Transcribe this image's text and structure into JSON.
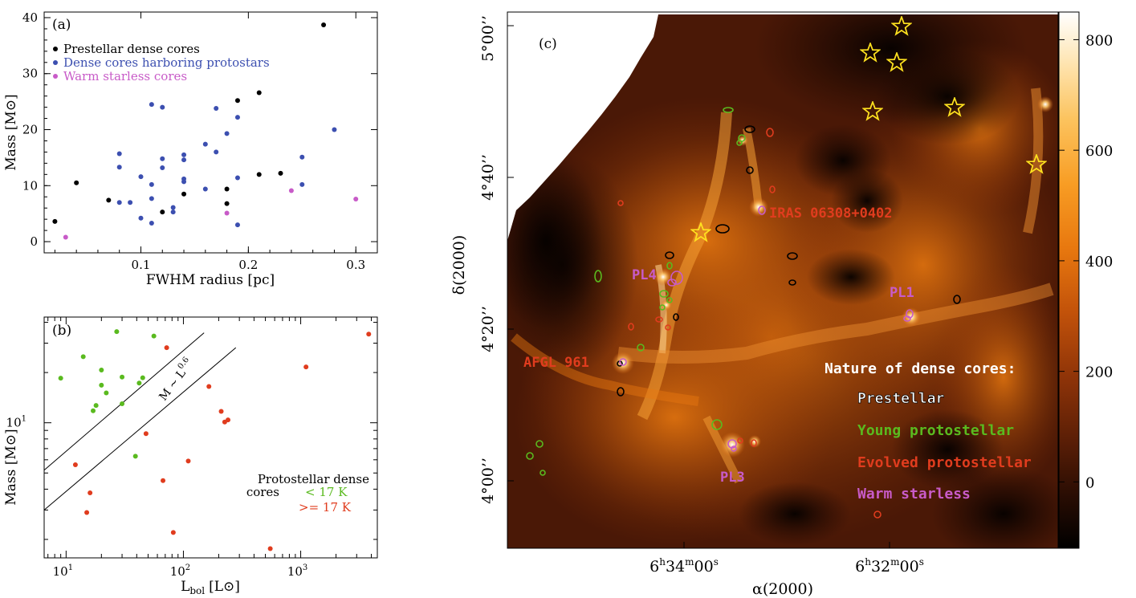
{
  "chart_data": [
    {
      "panel": "(a)",
      "type": "scatter",
      "xlabel": "FWHM radius [pc]",
      "ylabel": "Mass [M⊙]",
      "xlim": [
        0.01,
        0.32
      ],
      "ylim": [
        -2,
        41
      ],
      "xticks": [
        0.1,
        0.2,
        0.3
      ],
      "xtick_labels": [
        "0.1",
        "0.2",
        "0.3"
      ],
      "yticks": [
        0,
        10,
        20,
        30,
        40
      ],
      "ytick_labels": [
        "0",
        "10",
        "20",
        "30",
        "40"
      ],
      "legend": "top-left",
      "series": [
        {
          "name": "Prestellar dense cores",
          "color": "#000000",
          "points": [
            [
              0.02,
              3.6
            ],
            [
              0.04,
              10.5
            ],
            [
              0.07,
              7.4
            ],
            [
              0.12,
              5.3
            ],
            [
              0.14,
              8.5
            ],
            [
              0.18,
              6.8
            ],
            [
              0.18,
              9.4
            ],
            [
              0.19,
              25.2
            ],
            [
              0.21,
              26.6
            ],
            [
              0.21,
              12.0
            ],
            [
              0.23,
              12.2
            ],
            [
              0.27,
              38.7
            ]
          ]
        },
        {
          "name": "Dense cores harboring protostars",
          "color": "#3c4fb0",
          "points": [
            [
              0.08,
              15.7
            ],
            [
              0.08,
              13.3
            ],
            [
              0.08,
              7.0
            ],
            [
              0.09,
              7.0
            ],
            [
              0.1,
              11.6
            ],
            [
              0.1,
              4.2
            ],
            [
              0.11,
              24.5
            ],
            [
              0.11,
              10.2
            ],
            [
              0.11,
              7.7
            ],
            [
              0.11,
              3.3
            ],
            [
              0.12,
              24.0
            ],
            [
              0.12,
              14.8
            ],
            [
              0.12,
              13.2
            ],
            [
              0.13,
              6.1
            ],
            [
              0.13,
              5.3
            ],
            [
              0.14,
              15.5
            ],
            [
              0.14,
              14.6
            ],
            [
              0.14,
              11.2
            ],
            [
              0.14,
              10.7
            ],
            [
              0.16,
              17.4
            ],
            [
              0.16,
              9.4
            ],
            [
              0.17,
              23.8
            ],
            [
              0.17,
              16.0
            ],
            [
              0.18,
              19.3
            ],
            [
              0.19,
              22.2
            ],
            [
              0.19,
              11.4
            ],
            [
              0.19,
              3.0
            ],
            [
              0.25,
              15.1
            ],
            [
              0.25,
              10.2
            ],
            [
              0.28,
              20.0
            ]
          ]
        },
        {
          "name": "Warm starless cores",
          "color": "#c85bc8",
          "points": [
            [
              0.03,
              0.8
            ],
            [
              0.18,
              5.1
            ],
            [
              0.24,
              9.1
            ],
            [
              0.3,
              7.6
            ]
          ]
        }
      ]
    },
    {
      "panel": "(b)",
      "type": "scatter",
      "xlabel": "L",
      "xlabel_sub": "bol",
      "xlabel_unit": "[L⊙]",
      "ylabel": "Mass [M⊙]",
      "xscale": "log",
      "yscale": "log",
      "xlim": [
        6.5,
        4500
      ],
      "ylim": [
        1.55,
        43
      ],
      "xticks": [
        10,
        100,
        1000
      ],
      "xtick_labels": [
        "10",
        "10",
        "10"
      ],
      "xtick_exps": [
        "1",
        "2",
        "3"
      ],
      "yticks": [
        10
      ],
      "ytick_labels": [
        "10"
      ],
      "ytick_exps": [
        "1"
      ],
      "line_label": "M ~ L",
      "line_label_exp": "0.6",
      "lines": [
        {
          "x": [
            6.5,
            150
          ],
          "y": [
            5.2,
            34.6
          ]
        },
        {
          "x": [
            6.5,
            280
          ],
          "y": [
            3.0,
            28.2
          ]
        }
      ],
      "legend_title": [
        "Protostellar dense",
        "cores"
      ],
      "series": [
        {
          "name": "< 17 K",
          "color": "#5aba1f",
          "points": [
            [
              9,
              18.5
            ],
            [
              14,
              24.9
            ],
            [
              20,
              20.7
            ],
            [
              17,
              11.8
            ],
            [
              18,
              12.7
            ],
            [
              20,
              16.8
            ],
            [
              22,
              15.1
            ],
            [
              27,
              35.2
            ],
            [
              30,
              18.8
            ],
            [
              30,
              13.0
            ],
            [
              39,
              6.3
            ],
            [
              42,
              17.3
            ],
            [
              45,
              18.6
            ],
            [
              56,
              33.1
            ]
          ]
        },
        {
          "name": ">= 17 K",
          "color": "#e03c1e",
          "points": [
            [
              12,
              5.6
            ],
            [
              15,
              2.9
            ],
            [
              16,
              3.8
            ],
            [
              48,
              8.6
            ],
            [
              67,
              4.5
            ],
            [
              72,
              28.2
            ],
            [
              82,
              2.2
            ],
            [
              110,
              5.9
            ],
            [
              165,
              16.5
            ],
            [
              210,
              11.7
            ],
            [
              225,
              10.1
            ],
            [
              240,
              10.4
            ],
            [
              550,
              1.76
            ],
            [
              1110,
              21.6
            ],
            [
              3800,
              34.0
            ]
          ]
        }
      ]
    },
    {
      "panel": "(c)",
      "type": "heatmap",
      "xlabel": "α(2000)",
      "ylabel": "δ(2000)",
      "xtick_labels": [
        {
          "h": "6",
          "m": "34",
          "s": "00"
        },
        {
          "h": "6",
          "m": "32",
          "s": "00"
        }
      ],
      "ytick_labels": [
        "4°00’’",
        "4°20’’",
        "4°40’’",
        "5°00’’"
      ],
      "colorbar_ticks": [
        "800",
        "600",
        "400",
        "200",
        "0"
      ],
      "colorbar_values": [
        800,
        600,
        400,
        200,
        0
      ],
      "colorbar_range": [
        -120,
        850
      ],
      "source_labels": [
        {
          "text": "IRAS 06308+0402",
          "color": "#e03c1e"
        },
        {
          "text": "PL4",
          "color": "#c85bc8"
        },
        {
          "text": "PL1",
          "color": "#c85bc8"
        },
        {
          "text": "AFGL 961",
          "color": "#e03c1e"
        },
        {
          "text": "PL3",
          "color": "#c85bc8"
        }
      ],
      "legend_title": "Nature of dense cores:",
      "legend": [
        {
          "label": "Prestellar",
          "color": "#ffffff",
          "outline": "#000000"
        },
        {
          "label": "Young protostellar",
          "color": "#5aba1f"
        },
        {
          "label": "Evolved protostellar",
          "color": "#e03c1e"
        },
        {
          "label": "Warm starless",
          "color": "#c85bc8"
        }
      ],
      "star_color": "#ffe21f"
    }
  ],
  "panel_labels": [
    "(a)",
    "(b)",
    "(c)"
  ]
}
